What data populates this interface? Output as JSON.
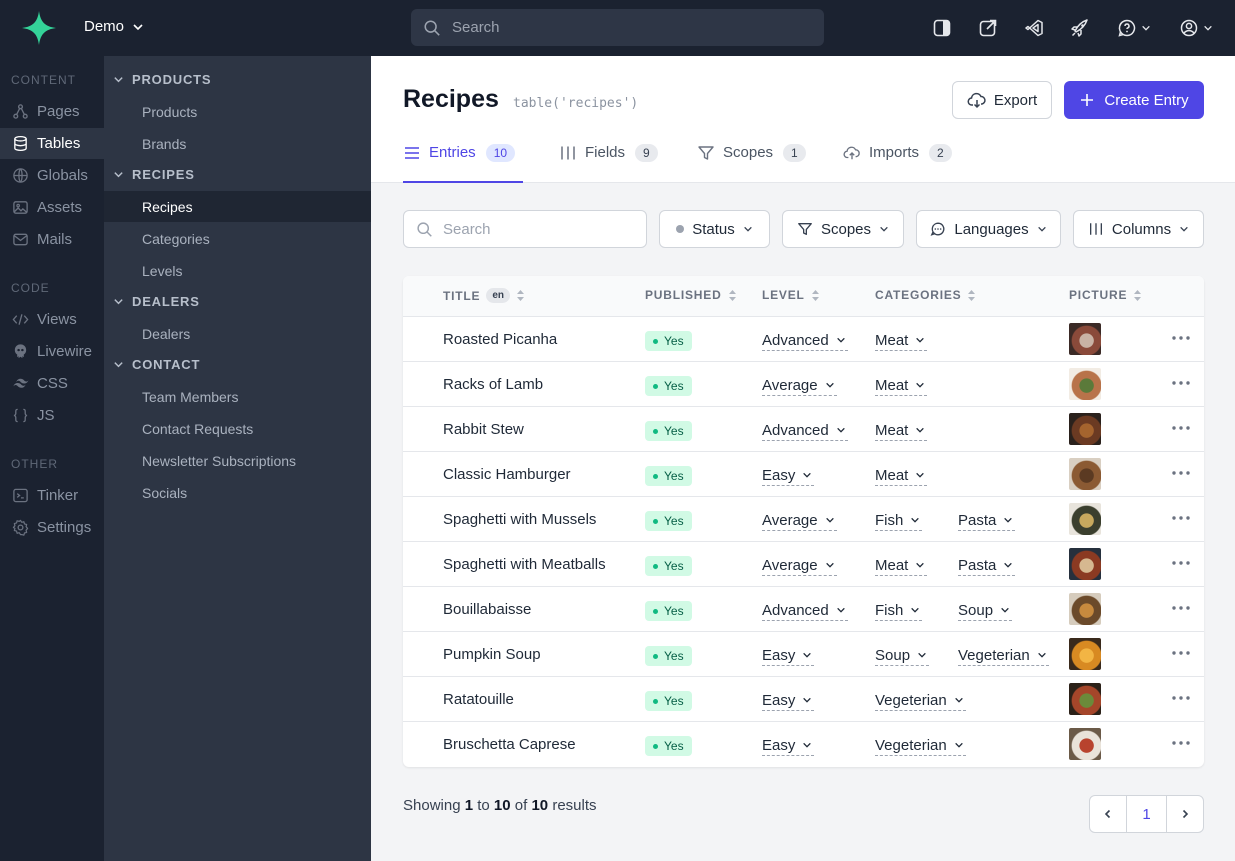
{
  "topbar": {
    "project": "Demo",
    "search_placeholder": "Search",
    "icons": [
      "sidebar-toggle-icon",
      "external-link-icon",
      "vscode-icon",
      "rocket-icon",
      "help-icon",
      "user-icon"
    ]
  },
  "nav": {
    "sections": [
      {
        "heading": "CONTENT",
        "items": [
          {
            "label": "Pages",
            "icon": "pages-icon"
          },
          {
            "label": "Tables",
            "icon": "database-icon",
            "active": true
          },
          {
            "label": "Globals",
            "icon": "globe-icon"
          },
          {
            "label": "Assets",
            "icon": "image-icon"
          },
          {
            "label": "Mails",
            "icon": "mail-icon"
          }
        ]
      },
      {
        "heading": "CODE",
        "items": [
          {
            "label": "Views",
            "icon": "code-icon"
          },
          {
            "label": "Livewire",
            "icon": "livewire-icon"
          },
          {
            "label": "CSS",
            "icon": "tailwind-icon"
          },
          {
            "label": "JS",
            "icon": "braces-icon"
          }
        ]
      },
      {
        "heading": "OTHER",
        "items": [
          {
            "label": "Tinker",
            "icon": "terminal-icon"
          },
          {
            "label": "Settings",
            "icon": "gear-icon"
          }
        ]
      }
    ]
  },
  "subnav": {
    "groups": [
      {
        "label": "PRODUCTS",
        "items": [
          "Products",
          "Brands"
        ]
      },
      {
        "label": "RECIPES",
        "items": [
          "Recipes",
          "Categories",
          "Levels"
        ]
      },
      {
        "label": "DEALERS",
        "items": [
          "Dealers"
        ]
      },
      {
        "label": "CONTACT",
        "items": [
          "Team Members",
          "Contact Requests",
          "Newsletter Subscriptions",
          "Socials"
        ]
      }
    ],
    "active": "Recipes"
  },
  "page": {
    "title": "Recipes",
    "code": "table('recipes')",
    "export_label": "Export",
    "create_label": "Create Entry"
  },
  "tabs": [
    {
      "label": "Entries",
      "count": "10",
      "active": true
    },
    {
      "label": "Fields",
      "count": "9"
    },
    {
      "label": "Scopes",
      "count": "1"
    },
    {
      "label": "Imports",
      "count": "2"
    }
  ],
  "filters": {
    "search_placeholder": "Search",
    "status": "Status",
    "scopes": "Scopes",
    "languages": "Languages",
    "columns": "Columns"
  },
  "table": {
    "headers": {
      "title": "TITLE",
      "lang": "en",
      "published": "PUBLISHED",
      "level": "LEVEL",
      "categories": "CATEGORIES",
      "picture": "PICTURE"
    },
    "rows": [
      {
        "title": "Roasted Picanha",
        "published": "Yes",
        "level": "Advanced",
        "categories": [
          "Meat"
        ],
        "pic": [
          "#3b2a26",
          "#8a4a3a",
          "#c9b3a5"
        ]
      },
      {
        "title": "Racks of Lamb",
        "published": "Yes",
        "level": "Average",
        "categories": [
          "Meat"
        ],
        "pic": [
          "#f2ece4",
          "#b8734a",
          "#5b7a3a"
        ]
      },
      {
        "title": "Rabbit Stew",
        "published": "Yes",
        "level": "Advanced",
        "categories": [
          "Meat"
        ],
        "pic": [
          "#2a211c",
          "#6b3a22",
          "#a5642e"
        ]
      },
      {
        "title": "Classic Hamburger",
        "published": "Yes",
        "level": "Easy",
        "categories": [
          "Meat"
        ],
        "pic": [
          "#d9cfc2",
          "#8b5a33",
          "#5b3a22"
        ]
      },
      {
        "title": "Spaghetti with Mussels",
        "published": "Yes",
        "level": "Average",
        "categories": [
          "Fish",
          "Pasta"
        ],
        "pic": [
          "#e8e4dc",
          "#3b3f2e",
          "#c8a95e"
        ]
      },
      {
        "title": "Spaghetti with Meatballs",
        "published": "Yes",
        "level": "Average",
        "categories": [
          "Meat",
          "Pasta"
        ],
        "pic": [
          "#26303d",
          "#8b3a22",
          "#d6b890"
        ]
      },
      {
        "title": "Bouillabaisse",
        "published": "Yes",
        "level": "Advanced",
        "categories": [
          "Fish",
          "Soup"
        ],
        "pic": [
          "#d6ccbd",
          "#6b4a2a",
          "#c78a3e"
        ]
      },
      {
        "title": "Pumpkin Soup",
        "published": "Yes",
        "level": "Easy",
        "categories": [
          "Soup",
          "Vegeterian"
        ],
        "pic": [
          "#3a2a1c",
          "#d88a22",
          "#f2b544"
        ]
      },
      {
        "title": "Ratatouille",
        "published": "Yes",
        "level": "Easy",
        "categories": [
          "Vegeterian"
        ],
        "pic": [
          "#2b2118",
          "#a5462a",
          "#6b8a3a"
        ]
      },
      {
        "title": "Bruschetta Caprese",
        "published": "Yes",
        "level": "Easy",
        "categories": [
          "Vegeterian"
        ],
        "pic": [
          "#6b5a48",
          "#e9e3da",
          "#b8432e"
        ]
      }
    ]
  },
  "footer": {
    "showing": "Showing",
    "from": "1",
    "to_word": "to",
    "to": "10",
    "of_word": "of",
    "total": "10",
    "results": "results",
    "current_page": "1"
  },
  "colors": {
    "accent": "#4f46e5",
    "sidebar": "#1b2230",
    "subnav": "#2d3544",
    "logo": "#34d399",
    "success_bg": "#d1fae5",
    "success_text": "#065f46"
  }
}
